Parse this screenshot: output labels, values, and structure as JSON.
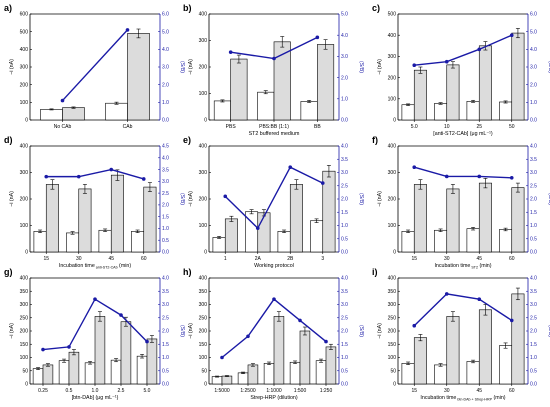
{
  "panel_letters": [
    "a)",
    "b)",
    "c)",
    "d)",
    "e)",
    "f)",
    "g)",
    "h)",
    "i)"
  ],
  "colors": {
    "ratio_line": "#1a1aa6",
    "bar_white": "#ffffff",
    "bar_gray": "#dcdcdc"
  },
  "chart_data": [
    {
      "type": "bar",
      "categories": [
        "No CAb",
        "CAb"
      ],
      "series": [
        {
          "role": "white",
          "values": [
            60,
            95
          ],
          "errors": [
            3,
            6
          ]
        },
        {
          "role": "gray",
          "values": [
            70,
            490
          ],
          "errors": [
            4,
            25
          ]
        },
        {
          "role": "ratio",
          "axis": "right",
          "values": [
            1.1,
            5.1
          ]
        }
      ],
      "ylim": [
        0,
        600
      ],
      "yticks": [
        0,
        100,
        200,
        300,
        400,
        500,
        600
      ],
      "y2lim": [
        0,
        6.0
      ],
      "y2ticks": [
        "0.0",
        "1.0",
        "2.0",
        "3.0",
        "4.0",
        "5.0",
        "6.0"
      ],
      "xlabel": "",
      "ylabel": "−i (nA)",
      "y2label": "(S/B)"
    },
    {
      "type": "bar",
      "categories": [
        "PBS",
        "PBS:BB (1:1)",
        "BB"
      ],
      "series": [
        {
          "role": "white",
          "values": [
            72,
            105,
            70
          ],
          "errors": [
            4,
            6,
            4
          ]
        },
        {
          "role": "gray",
          "values": [
            230,
            295,
            285
          ],
          "errors": [
            15,
            20,
            18
          ]
        },
        {
          "role": "ratio",
          "axis": "right",
          "values": [
            3.2,
            2.9,
            3.9
          ]
        }
      ],
      "ylim": [
        0,
        400
      ],
      "yticks": [
        0,
        100,
        200,
        300,
        400
      ],
      "y2lim": [
        0,
        5.0
      ],
      "y2ticks": [
        "0.0",
        "1.0",
        "2.0",
        "3.0",
        "4.0",
        "5.0"
      ],
      "xlabel": "ST2 buffered medium",
      "ylabel": "−i (nA)",
      "y2label": "(S/B)"
    },
    {
      "type": "bar",
      "categories": [
        "5.0",
        "10",
        "25",
        "50"
      ],
      "series": [
        {
          "role": "white",
          "values": [
            72,
            78,
            88,
            85
          ],
          "errors": [
            4,
            4,
            5,
            5
          ]
        },
        {
          "role": "gray",
          "values": [
            235,
            260,
            350,
            410
          ],
          "errors": [
            15,
            15,
            20,
            22
          ]
        },
        {
          "role": "ratio",
          "axis": "right",
          "values": [
            3.1,
            3.3,
            4.0,
            4.8
          ]
        }
      ],
      "ylim": [
        0,
        500
      ],
      "yticks": [
        0,
        100,
        200,
        300,
        400,
        500
      ],
      "y2lim": [
        0,
        6.0
      ],
      "y2ticks": [
        "0.0",
        "1.0",
        "2.0",
        "3.0",
        "4.0",
        "5.0",
        "6.0"
      ],
      "xlabel": "[anti-ST2-CAb] (μg mL⁻¹)",
      "ylabel": "−i (nA)",
      "y2label": "(S/B)"
    },
    {
      "type": "bar",
      "categories": [
        "15",
        "30",
        "45",
        "60"
      ],
      "series": [
        {
          "role": "white",
          "values": [
            78,
            72,
            82,
            78
          ],
          "errors": [
            5,
            5,
            5,
            5
          ]
        },
        {
          "role": "gray",
          "values": [
            255,
            238,
            290,
            245
          ],
          "errors": [
            18,
            17,
            20,
            17
          ]
        },
        {
          "role": "ratio",
          "axis": "right",
          "values": [
            3.2,
            3.2,
            3.5,
            3.1
          ]
        }
      ],
      "ylim": [
        0,
        400
      ],
      "yticks": [
        0,
        100,
        200,
        300,
        400
      ],
      "y2lim": [
        0,
        4.5
      ],
      "y2ticks": [
        "0.0",
        "0.5",
        "1.0",
        "1.5",
        "2.0",
        "2.5",
        "3.0",
        "3.5",
        "4.0",
        "4.5"
      ],
      "xlabel": "Incubation time",
      "xlabel_sub": "anti-ST2-CAb",
      "xlabel_unit": "(min)",
      "ylabel": "−i (nA)",
      "y2label": "(S/B)"
    },
    {
      "type": "bar",
      "categories": [
        "1",
        "2A",
        "2B",
        "3"
      ],
      "series": [
        {
          "role": "white",
          "values": [
            55,
            152,
            78,
            118
          ],
          "errors": [
            4,
            8,
            5,
            7
          ]
        },
        {
          "role": "gray",
          "values": [
            125,
            148,
            255,
            305
          ],
          "errors": [
            10,
            12,
            18,
            22
          ]
        },
        {
          "role": "ratio",
          "axis": "right",
          "values": [
            2.1,
            0.9,
            3.2,
            2.6
          ]
        }
      ],
      "ylim": [
        0,
        400
      ],
      "yticks": [
        0,
        100,
        200,
        300,
        400
      ],
      "y2lim": [
        0,
        4.0
      ],
      "y2ticks": [
        "0.0",
        "0.5",
        "1.0",
        "1.5",
        "2.0",
        "2.5",
        "3.0",
        "3.5",
        "4.0"
      ],
      "xlabel": "Working protocol",
      "ylabel": "−i (nA)",
      "y2label": "(S/B)"
    },
    {
      "type": "bar",
      "categories": [
        "15",
        "30",
        "45",
        "60"
      ],
      "series": [
        {
          "role": "white",
          "values": [
            78,
            82,
            88,
            85
          ],
          "errors": [
            5,
            5,
            5,
            5
          ]
        },
        {
          "role": "gray",
          "values": [
            255,
            238,
            260,
            243
          ],
          "errors": [
            18,
            17,
            18,
            17
          ]
        },
        {
          "role": "ratio",
          "axis": "right",
          "values": [
            3.2,
            2.85,
            2.85,
            2.8
          ]
        }
      ],
      "ylim": [
        0,
        400
      ],
      "yticks": [
        0,
        100,
        200,
        300,
        400
      ],
      "y2lim": [
        0,
        4.0
      ],
      "y2ticks": [
        "0.0",
        "0.5",
        "1.0",
        "1.5",
        "2.0",
        "2.5",
        "3.0",
        "3.5",
        "4.0"
      ],
      "xlabel": "Incubation time",
      "xlabel_sub": "ST2",
      "xlabel_unit": "(min)",
      "ylabel": "−i (nA)",
      "y2label": "(S/B)"
    },
    {
      "type": "bar",
      "categories": [
        "0.25",
        "0.5",
        "1.0",
        "2.5",
        "5.0"
      ],
      "series": [
        {
          "role": "white",
          "values": [
            58,
            88,
            80,
            90,
            105
          ],
          "errors": [
            4,
            6,
            5,
            6,
            7
          ]
        },
        {
          "role": "gray",
          "values": [
            72,
            120,
            255,
            235,
            170
          ],
          "errors": [
            5,
            10,
            18,
            17,
            13
          ]
        },
        {
          "role": "ratio",
          "axis": "right",
          "values": [
            1.3,
            1.4,
            3.2,
            2.6,
            1.6
          ]
        }
      ],
      "ylim": [
        0,
        400
      ],
      "yticks": [
        0,
        50,
        100,
        150,
        200,
        250,
        300,
        350,
        400
      ],
      "y2lim": [
        0,
        4.0
      ],
      "y2ticks": [
        "0.0",
        "0.5",
        "1.0",
        "1.5",
        "2.0",
        "2.5",
        "3.0",
        "3.5",
        "4.0"
      ],
      "xlabel": "[btn-DAb] (μg mL⁻¹)",
      "ylabel": "−i (nA)",
      "y2label": "(S/B)"
    },
    {
      "type": "bar",
      "categories": [
        "1:5000",
        "1:2500",
        "1:1000",
        "1:500",
        "1:250"
      ],
      "series": [
        {
          "role": "white",
          "values": [
            28,
            42,
            78,
            82,
            88
          ],
          "errors": [
            2,
            3,
            5,
            5,
            6
          ]
        },
        {
          "role": "gray",
          "values": [
            30,
            72,
            255,
            200,
            140
          ],
          "errors": [
            2,
            5,
            18,
            15,
            10
          ]
        },
        {
          "role": "ratio",
          "axis": "right",
          "values": [
            1.0,
            1.8,
            3.2,
            2.4,
            1.6
          ]
        }
      ],
      "ylim": [
        0,
        400
      ],
      "yticks": [
        0,
        50,
        100,
        150,
        200,
        250,
        300,
        350,
        400
      ],
      "y2lim": [
        0,
        4.0
      ],
      "y2ticks": [
        "0.0",
        "0.5",
        "1.0",
        "1.5",
        "2.0",
        "2.5",
        "3.0",
        "3.5",
        "4.0"
      ],
      "xlabel": "Strep-HRP (dilution)",
      "ylabel": "−i (nA)",
      "y2label": "(S/B)"
    },
    {
      "type": "bar",
      "categories": [
        "15",
        "30",
        "45",
        "60"
      ],
      "series": [
        {
          "role": "white",
          "values": [
            78,
            72,
            85,
            145
          ],
          "errors": [
            5,
            5,
            5,
            10
          ]
        },
        {
          "role": "gray",
          "values": [
            175,
            255,
            280,
            340
          ],
          "errors": [
            12,
            18,
            20,
            22
          ]
        },
        {
          "role": "ratio",
          "axis": "right",
          "values": [
            2.2,
            3.4,
            3.2,
            2.4
          ]
        }
      ],
      "ylim": [
        0,
        400
      ],
      "yticks": [
        0,
        50,
        100,
        150,
        200,
        250,
        300,
        350,
        400
      ],
      "y2lim": [
        0,
        4.0
      ],
      "y2ticks": [
        "0.0",
        "0.5",
        "1.0",
        "1.5",
        "2.0",
        "2.5",
        "3.0",
        "3.5",
        "4.0"
      ],
      "xlabel": "Incubation time",
      "xlabel_sub": "btn-DAb + Strep-HRP",
      "xlabel_unit": "(min)",
      "ylabel": "−i (nA)",
      "y2label": "(S/B)"
    }
  ]
}
